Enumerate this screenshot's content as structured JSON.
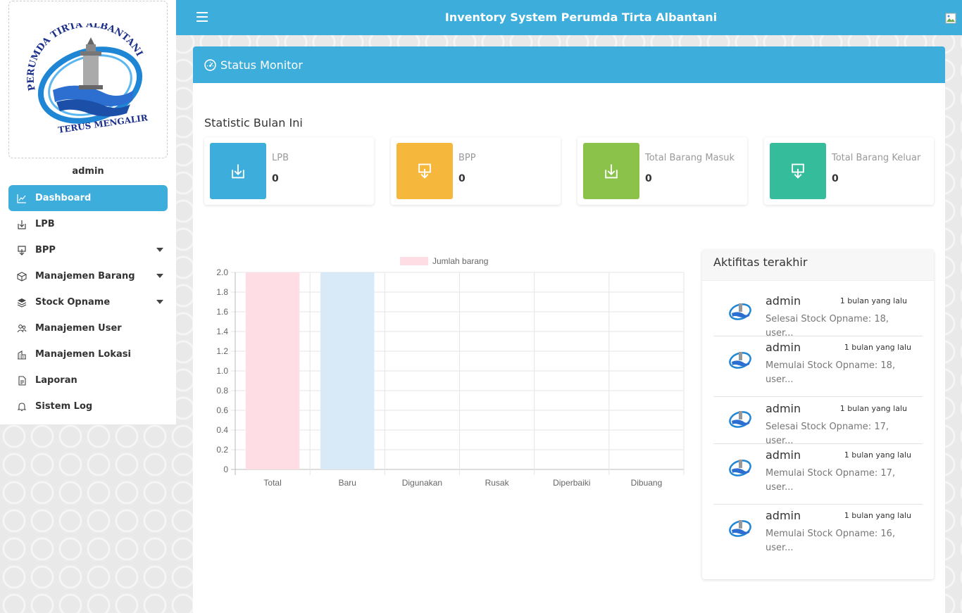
{
  "header": {
    "title": "Inventory System Perumda Tirta Albantani"
  },
  "sidebar": {
    "logo": {
      "top_text": "PERUMDA TIRTA ALBANTANI",
      "bottom_text": "TERUS MENGALIR"
    },
    "user": "admin",
    "items": [
      {
        "label": "Dashboard",
        "icon": "chart-line-icon",
        "active": true,
        "has_submenu": false
      },
      {
        "label": "LPB",
        "icon": "download-icon",
        "active": false,
        "has_submenu": false
      },
      {
        "label": "BPP",
        "icon": "upload-icon",
        "active": false,
        "has_submenu": true
      },
      {
        "label": "Manajemen Barang",
        "icon": "box-icon",
        "active": false,
        "has_submenu": true
      },
      {
        "label": "Stock Opname",
        "icon": "layers-icon",
        "active": false,
        "has_submenu": true
      },
      {
        "label": "Manajemen User",
        "icon": "users-icon",
        "active": false,
        "has_submenu": false
      },
      {
        "label": "Manajemen Lokasi",
        "icon": "building-icon",
        "active": false,
        "has_submenu": false
      },
      {
        "label": "Laporan",
        "icon": "document-icon",
        "active": false,
        "has_submenu": false
      },
      {
        "label": "Sistem Log",
        "icon": "bell-icon",
        "active": false,
        "has_submenu": false
      }
    ]
  },
  "main": {
    "card_title": "Status Monitor",
    "section_title": "Statistic Bulan Ini",
    "stats": [
      {
        "label": "LPB",
        "value": "0",
        "color": "#3daedb",
        "icon": "download-icon"
      },
      {
        "label": "BPP",
        "value": "0",
        "color": "#f5b83c",
        "icon": "upload-icon"
      },
      {
        "label": "Total Barang Masuk",
        "value": "0",
        "color": "#8bc34a",
        "icon": "download-icon"
      },
      {
        "label": "Total Barang Keluar",
        "value": "0",
        "color": "#35bc9b",
        "icon": "upload-icon"
      }
    ]
  },
  "chart_data": {
    "type": "bar",
    "categories": [
      "Total",
      "Baru",
      "Digunakan",
      "Rusak",
      "Diperbaiki",
      "Dibuang"
    ],
    "series": [
      {
        "name": "Jumlah barang",
        "values": [
          2,
          2,
          0,
          0,
          0,
          0
        ]
      }
    ],
    "bar_colors": [
      "#ffdde4",
      "#d8eaf8",
      "#ffdde4",
      "#d8eaf8",
      "#ffdde4",
      "#d8eaf8"
    ],
    "yticks": [
      "0",
      "0.2",
      "0.4",
      "0.6",
      "0.8",
      "1.0",
      "1.2",
      "1.4",
      "1.6",
      "1.8",
      "2.0"
    ],
    "ylim": [
      0,
      2
    ],
    "grid": true,
    "legend": "top"
  },
  "activity": {
    "title": "Aktifitas terakhir",
    "items": [
      {
        "user": "admin",
        "time": "1 bulan yang lalu",
        "message": "Selesai Stock Opname: 18, user..."
      },
      {
        "user": "admin",
        "time": "1 bulan yang lalu",
        "message": "Memulai Stock Opname: 18, user..."
      },
      {
        "user": "admin",
        "time": "1 bulan yang lalu",
        "message": "Selesai Stock Opname: 17, user..."
      },
      {
        "user": "admin",
        "time": "1 bulan yang lalu",
        "message": "Memulai Stock Opname: 17, user..."
      },
      {
        "user": "admin",
        "time": "1 bulan yang lalu",
        "message": "Memulai Stock Opname: 16, user..."
      }
    ]
  }
}
